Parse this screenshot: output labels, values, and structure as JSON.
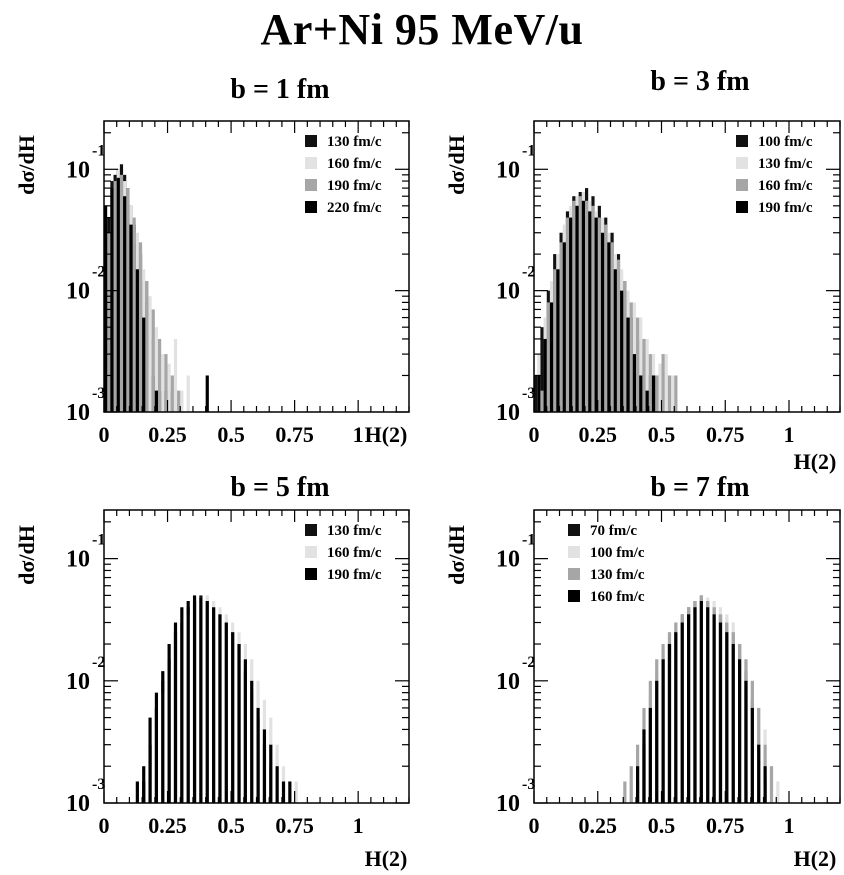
{
  "title": "Ar+Ni 95 MeV/u",
  "colors": {
    "dark": "#111111",
    "light": "#e2e2e2",
    "medium": "#a6a6a6",
    "darkest": "#000000",
    "frame": "#000000"
  },
  "chart_data": [
    {
      "type": "histogram",
      "title": "b = 1 fm",
      "xlabel": "H(2)",
      "ylabel": "dσ/dH",
      "yscale": "log",
      "xlim": [
        0,
        1.2
      ],
      "ylim": [
        0.001,
        0.25
      ],
      "x_ticks": [
        {
          "v": 0,
          "label": "0"
        },
        {
          "v": 0.25,
          "label": "0.25"
        },
        {
          "v": 0.5,
          "label": "0.5"
        },
        {
          "v": 0.75,
          "label": "0.75"
        },
        {
          "v": 1,
          "label": "1"
        }
      ],
      "y_ticks": [
        {
          "v": 0.1,
          "base": "10",
          "exp": "-1"
        },
        {
          "v": 0.01,
          "base": "10",
          "exp": "-2"
        },
        {
          "v": 0.001,
          "base": "10",
          "exp": "-3"
        }
      ],
      "legend_position": "top-right",
      "bin_width": 0.0125,
      "series": [
        {
          "name": "130 fm/c",
          "fill": "dark",
          "x": [
            0,
            0.0125,
            0.025,
            0.0375,
            0.05,
            0.0625,
            0.075,
            0.0875,
            0.1,
            0.1125,
            0.125,
            0.1375,
            0.15,
            0.1625,
            0.175,
            0.1875,
            0.2,
            0.225,
            0.25
          ],
          "y": [
            0.008,
            0.04,
            0.08,
            0.09,
            0.1,
            0.11,
            0.09,
            0.07,
            0.05,
            0.035,
            0.025,
            0.02,
            0.012,
            0.008,
            0.004,
            0.002,
            0.0015,
            0.0015,
            0.0015
          ]
        },
        {
          "name": "160 fm/c",
          "fill": "light",
          "x": [
            0,
            0.025,
            0.05,
            0.075,
            0.1,
            0.125,
            0.15,
            0.175,
            0.2,
            0.225,
            0.25,
            0.275,
            0.3,
            0.325,
            0.4
          ],
          "y": [
            0.004,
            0.05,
            0.1,
            0.08,
            0.05,
            0.03,
            0.015,
            0.009,
            0.005,
            0.003,
            0.0025,
            0.004,
            0.0015,
            0.002,
            0.0015
          ]
        },
        {
          "name": "190 fm/c",
          "fill": "medium",
          "x": [
            0.0125,
            0.0375,
            0.0625,
            0.0875,
            0.1125,
            0.1375,
            0.1625,
            0.1875,
            0.2125,
            0.2375,
            0.2625,
            0.2875
          ],
          "y": [
            0.03,
            0.08,
            0.09,
            0.07,
            0.04,
            0.025,
            0.012,
            0.007,
            0.004,
            0.003,
            0.002,
            0.0015
          ]
        },
        {
          "name": "220 fm/c",
          "fill": "darkest",
          "x": [
            0,
            0.025,
            0.05,
            0.075,
            0.1,
            0.125,
            0.15,
            0.2,
            0.4
          ],
          "y": [
            0.05,
            0.07,
            0.085,
            0.06,
            0.035,
            0.015,
            0.006,
            0.0015,
            0.002
          ]
        }
      ]
    },
    {
      "type": "histogram",
      "title": "b = 3 fm",
      "xlabel": "H(2)",
      "ylabel": "dσ/dH",
      "yscale": "log",
      "xlim": [
        0,
        1.2
      ],
      "ylim": [
        0.001,
        0.25
      ],
      "x_ticks": [
        {
          "v": 0,
          "label": "0"
        },
        {
          "v": 0.25,
          "label": "0.25"
        },
        {
          "v": 0.5,
          "label": "0.5"
        },
        {
          "v": 0.75,
          "label": "0.75"
        },
        {
          "v": 1,
          "label": "1"
        }
      ],
      "y_ticks": [
        {
          "v": 0.1,
          "base": "10",
          "exp": "-1"
        },
        {
          "v": 0.01,
          "base": "10",
          "exp": "-2"
        },
        {
          "v": 0.001,
          "base": "10",
          "exp": "-3"
        }
      ],
      "legend_position": "top-right",
      "bin_width": 0.0125,
      "series": [
        {
          "name": "100 fm/c",
          "fill": "dark",
          "x": [
            0,
            0.025,
            0.05,
            0.075,
            0.1,
            0.125,
            0.15,
            0.175,
            0.2,
            0.225,
            0.25,
            0.275,
            0.3,
            0.325,
            0.35,
            0.375,
            0.4,
            0.425,
            0.45,
            0.475
          ],
          "y": [
            0.002,
            0.005,
            0.01,
            0.02,
            0.03,
            0.045,
            0.06,
            0.065,
            0.07,
            0.06,
            0.05,
            0.04,
            0.03,
            0.02,
            0.012,
            0.006,
            0.004,
            0.003,
            0.002,
            0.002
          ]
        },
        {
          "name": "130 fm/c",
          "fill": "light",
          "x": [
            0.0125,
            0.0375,
            0.0625,
            0.0875,
            0.1125,
            0.1375,
            0.1625,
            0.1875,
            0.2125,
            0.2375,
            0.2625,
            0.2875,
            0.3125,
            0.3375,
            0.3625,
            0.3875,
            0.4125,
            0.4375,
            0.4625,
            0.4875,
            0.5125,
            0.5375
          ],
          "y": [
            0.003,
            0.006,
            0.012,
            0.02,
            0.035,
            0.05,
            0.06,
            0.065,
            0.055,
            0.045,
            0.04,
            0.03,
            0.02,
            0.015,
            0.01,
            0.008,
            0.006,
            0.004,
            0.003,
            0.0025,
            0.003,
            0.002
          ]
        },
        {
          "name": "160 fm/c",
          "fill": "medium",
          "x": [
            0.025,
            0.05,
            0.075,
            0.1,
            0.125,
            0.15,
            0.175,
            0.2,
            0.225,
            0.25,
            0.275,
            0.3,
            0.325,
            0.35,
            0.375,
            0.4,
            0.425,
            0.45,
            0.475,
            0.5,
            0.525,
            0.55
          ],
          "y": [
            0.0015,
            0.008,
            0.015,
            0.025,
            0.04,
            0.055,
            0.06,
            0.055,
            0.05,
            0.04,
            0.035,
            0.025,
            0.018,
            0.012,
            0.008,
            0.006,
            0.004,
            0.003,
            0.002,
            0.003,
            0.002,
            0.002
          ]
        },
        {
          "name": "190 fm/c",
          "fill": "darkest",
          "x": [
            0.0125,
            0.0375,
            0.0625,
            0.0875,
            0.1125,
            0.1375,
            0.1625,
            0.1875,
            0.2125,
            0.2375,
            0.2625,
            0.2875,
            0.3125,
            0.3375,
            0.3625,
            0.3875,
            0.4125,
            0.4375,
            0.4625
          ],
          "y": [
            0.002,
            0.004,
            0.008,
            0.015,
            0.025,
            0.04,
            0.05,
            0.055,
            0.045,
            0.04,
            0.03,
            0.025,
            0.015,
            0.01,
            0.006,
            0.003,
            0.002,
            0.0015,
            0.002
          ]
        }
      ]
    },
    {
      "type": "histogram",
      "title": "b = 5 fm",
      "xlabel": "H(2)",
      "ylabel": "dσ/dH",
      "yscale": "log",
      "xlim": [
        0,
        1.2
      ],
      "ylim": [
        0.001,
        0.25
      ],
      "x_ticks": [
        {
          "v": 0,
          "label": "0"
        },
        {
          "v": 0.25,
          "label": "0.25"
        },
        {
          "v": 0.5,
          "label": "0.5"
        },
        {
          "v": 0.75,
          "label": "0.75"
        },
        {
          "v": 1,
          "label": "1"
        }
      ],
      "y_ticks": [
        {
          "v": 0.1,
          "base": "10",
          "exp": "-1"
        },
        {
          "v": 0.01,
          "base": "10",
          "exp": "-2"
        },
        {
          "v": 0.001,
          "base": "10",
          "exp": "-3"
        }
      ],
      "legend_position": "top-right",
      "bin_width": 0.0125,
      "series": [
        {
          "name": "130 fm/c",
          "fill": "dark",
          "x": [
            0.15,
            0.175,
            0.2,
            0.225,
            0.25,
            0.275,
            0.3,
            0.325,
            0.35,
            0.375,
            0.4,
            0.425,
            0.45,
            0.475,
            0.5,
            0.525,
            0.55,
            0.575,
            0.6,
            0.625,
            0.65
          ],
          "y": [
            0.0015,
            0.003,
            0.006,
            0.01,
            0.015,
            0.025,
            0.03,
            0.04,
            0.045,
            0.05,
            0.045,
            0.04,
            0.035,
            0.03,
            0.025,
            0.02,
            0.012,
            0.008,
            0.005,
            0.003,
            0.002
          ]
        },
        {
          "name": "160 fm/c",
          "fill": "light",
          "x": [
            0.175,
            0.2,
            0.225,
            0.25,
            0.275,
            0.3,
            0.325,
            0.35,
            0.375,
            0.4,
            0.425,
            0.45,
            0.475,
            0.5,
            0.525,
            0.55,
            0.575,
            0.6,
            0.625,
            0.65,
            0.675,
            0.7,
            0.725,
            0.75
          ],
          "y": [
            0.002,
            0.004,
            0.008,
            0.012,
            0.02,
            0.03,
            0.035,
            0.04,
            0.048,
            0.05,
            0.045,
            0.04,
            0.035,
            0.03,
            0.025,
            0.02,
            0.015,
            0.01,
            0.007,
            0.005,
            0.003,
            0.002,
            0.0015,
            0.0015
          ]
        },
        {
          "name": "190 fm/c",
          "fill": "darkest",
          "x": [
            0.125,
            0.15,
            0.175,
            0.2,
            0.225,
            0.25,
            0.275,
            0.3,
            0.325,
            0.35,
            0.375,
            0.4,
            0.425,
            0.45,
            0.475,
            0.5,
            0.525,
            0.55,
            0.575,
            0.6,
            0.625,
            0.65,
            0.675,
            0.7,
            0.725
          ],
          "y": [
            0.0015,
            0.002,
            0.005,
            0.008,
            0.012,
            0.02,
            0.03,
            0.04,
            0.045,
            0.05,
            0.048,
            0.045,
            0.04,
            0.035,
            0.03,
            0.025,
            0.02,
            0.015,
            0.01,
            0.006,
            0.004,
            0.003,
            0.002,
            0.0015,
            0.0015
          ]
        }
      ]
    },
    {
      "type": "histogram",
      "title": "b = 7 fm",
      "xlabel": "H(2)",
      "ylabel": "dσ/dH",
      "yscale": "log",
      "xlim": [
        0,
        1.2
      ],
      "ylim": [
        0.001,
        0.25
      ],
      "x_ticks": [
        {
          "v": 0,
          "label": "0"
        },
        {
          "v": 0.25,
          "label": "0.25"
        },
        {
          "v": 0.5,
          "label": "0.5"
        },
        {
          "v": 0.75,
          "label": "0.75"
        },
        {
          "v": 1,
          "label": "1"
        }
      ],
      "y_ticks": [
        {
          "v": 0.1,
          "base": "10",
          "exp": "-1"
        },
        {
          "v": 0.01,
          "base": "10",
          "exp": "-2"
        },
        {
          "v": 0.001,
          "base": "10",
          "exp": "-3"
        }
      ],
      "legend_position": "top-left",
      "bin_width": 0.0125,
      "series": [
        {
          "name": "70 fm/c",
          "fill": "dark",
          "x": [
            0.4,
            0.425,
            0.45,
            0.475,
            0.5,
            0.525,
            0.55,
            0.575,
            0.6,
            0.625,
            0.65,
            0.675,
            0.7,
            0.725,
            0.75,
            0.775,
            0.8,
            0.825,
            0.85,
            0.875,
            0.9
          ],
          "y": [
            0.0015,
            0.003,
            0.006,
            0.01,
            0.015,
            0.02,
            0.025,
            0.035,
            0.04,
            0.045,
            0.05,
            0.045,
            0.04,
            0.035,
            0.03,
            0.025,
            0.02,
            0.012,
            0.007,
            0.003,
            0.0015
          ]
        },
        {
          "name": "100 fm/c",
          "fill": "light",
          "x": [
            0.375,
            0.4,
            0.425,
            0.45,
            0.475,
            0.5,
            0.525,
            0.55,
            0.575,
            0.6,
            0.625,
            0.65,
            0.675,
            0.7,
            0.725,
            0.75,
            0.775,
            0.8,
            0.825,
            0.85,
            0.875,
            0.9,
            0.925,
            0.95
          ],
          "y": [
            0.0015,
            0.002,
            0.004,
            0.008,
            0.012,
            0.018,
            0.025,
            0.03,
            0.035,
            0.04,
            0.045,
            0.05,
            0.048,
            0.045,
            0.04,
            0.035,
            0.03,
            0.02,
            0.015,
            0.01,
            0.006,
            0.004,
            0.002,
            0.0015
          ]
        },
        {
          "name": "130 fm/c",
          "fill": "medium",
          "x": [
            0.35,
            0.375,
            0.4,
            0.425,
            0.45,
            0.475,
            0.5,
            0.525,
            0.55,
            0.575,
            0.6,
            0.625,
            0.65,
            0.675,
            0.7,
            0.725,
            0.75,
            0.775,
            0.8,
            0.825,
            0.85,
            0.875,
            0.9,
            0.925
          ],
          "y": [
            0.0015,
            0.002,
            0.003,
            0.006,
            0.01,
            0.015,
            0.02,
            0.025,
            0.03,
            0.035,
            0.04,
            0.045,
            0.05,
            0.045,
            0.04,
            0.035,
            0.03,
            0.025,
            0.02,
            0.015,
            0.01,
            0.006,
            0.003,
            0.002
          ]
        },
        {
          "name": "160 fm/c",
          "fill": "darkest",
          "x": [
            0.4,
            0.425,
            0.45,
            0.475,
            0.5,
            0.525,
            0.55,
            0.575,
            0.6,
            0.625,
            0.65,
            0.675,
            0.7,
            0.725,
            0.75,
            0.775,
            0.8,
            0.825,
            0.85,
            0.875,
            0.9
          ],
          "y": [
            0.002,
            0.004,
            0.006,
            0.01,
            0.015,
            0.02,
            0.025,
            0.03,
            0.035,
            0.04,
            0.045,
            0.04,
            0.035,
            0.03,
            0.025,
            0.02,
            0.015,
            0.01,
            0.006,
            0.003,
            0.002
          ]
        }
      ]
    }
  ]
}
